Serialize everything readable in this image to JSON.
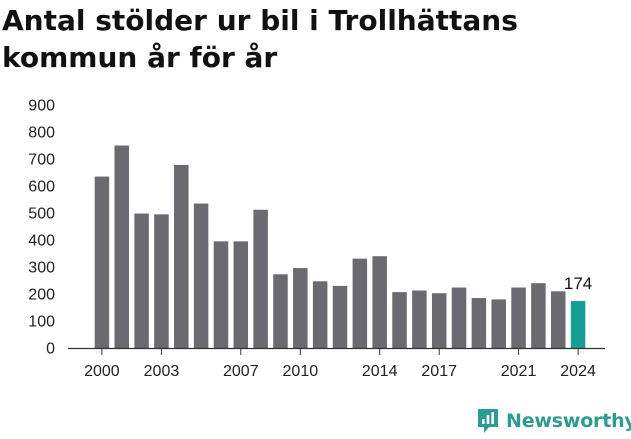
{
  "header": {
    "title_line1": "Antal stölder ur bil i Trollhättans",
    "title_line2": "kommun år för år"
  },
  "brand": {
    "name": "Newsworthy",
    "icon": "newsworthy-logo-icon"
  },
  "colors": {
    "bar": "#6b6a70",
    "highlight": "#159e96",
    "axis": "#333333",
    "grid": "#e6e6e6"
  },
  "chart_data": {
    "type": "bar",
    "categories": [
      "2000",
      "2001",
      "2002",
      "2003",
      "2004",
      "2005",
      "2006",
      "2007",
      "2008",
      "2009",
      "2010",
      "2011",
      "2012",
      "2013",
      "2014",
      "2015",
      "2016",
      "2017",
      "2018",
      "2019",
      "2020",
      "2021",
      "2022",
      "2023",
      "2024"
    ],
    "values": [
      635,
      750,
      498,
      495,
      678,
      535,
      395,
      395,
      512,
      273,
      296,
      247,
      230,
      331,
      340,
      207,
      213,
      203,
      224,
      185,
      180,
      224,
      240,
      210,
      174
    ],
    "x_tick_labels": [
      "2000",
      "2003",
      "2007",
      "2010",
      "2014",
      "2017",
      "2021",
      "2024"
    ],
    "y_tick_labels": [
      "0",
      "100",
      "200",
      "300",
      "400",
      "500",
      "600",
      "700",
      "800",
      "900"
    ],
    "ylim": [
      0,
      900
    ],
    "highlight_index": 24,
    "annotation": {
      "category": "2024",
      "text": "174"
    },
    "grid": false,
    "title": "Antal stölder ur bil i Trollhättans kommun år för år",
    "xlabel": "",
    "ylabel": ""
  }
}
